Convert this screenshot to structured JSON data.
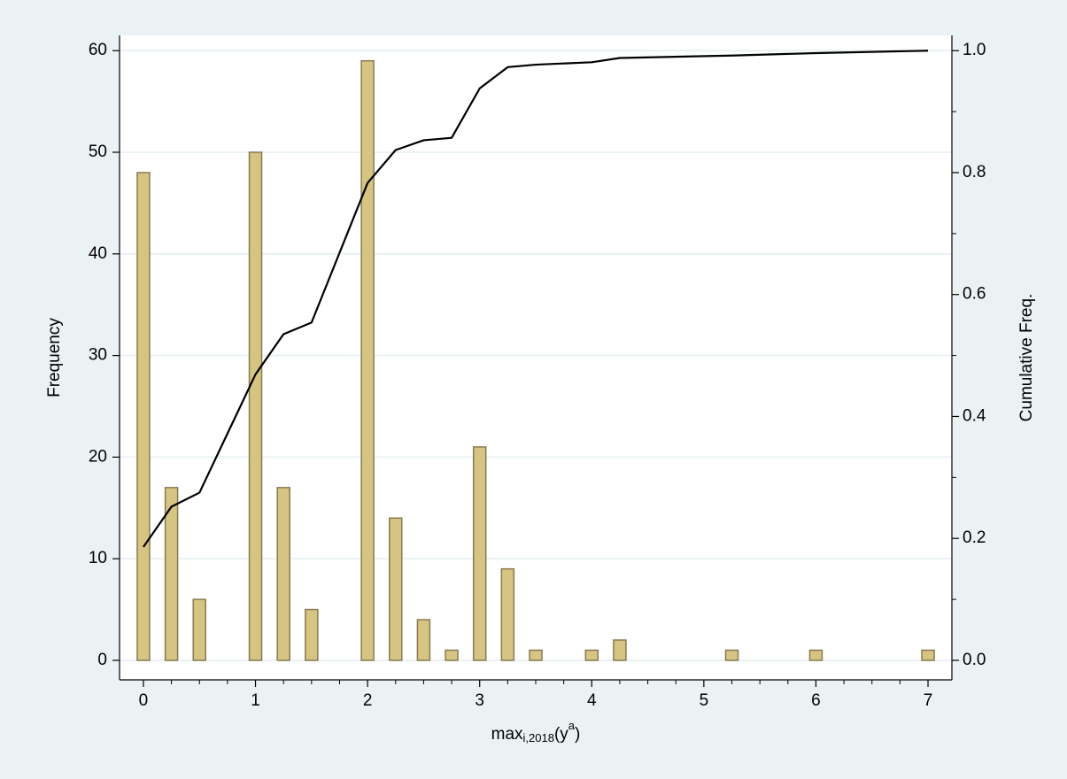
{
  "chart_data": {
    "type": "bar_line",
    "ylabel": "Frequency",
    "y2label": "Cumulative Freq.",
    "xlabel": {
      "base": "max",
      "sub": "i,2018",
      "mid": "(y",
      "sup": "a",
      "end": ")"
    },
    "x": [
      0,
      0.25,
      0.5,
      1,
      1.25,
      1.5,
      2,
      2.25,
      2.5,
      2.75,
      3,
      3.25,
      3.5,
      4,
      4.25,
      5.25,
      6,
      7
    ],
    "series": [
      {
        "type": "bar",
        "color": "#d6c482",
        "edgecolor": "#8a7a52",
        "values": [
          48,
          17,
          6,
          50,
          17,
          5,
          59,
          14,
          4,
          1,
          21,
          9,
          1,
          1,
          2,
          1,
          1,
          1
        ]
      },
      {
        "type": "line",
        "axis": "y2",
        "color": "#000000",
        "values": [
          0.186,
          0.252,
          0.275,
          0.469,
          0.535,
          0.554,
          0.783,
          0.837,
          0.853,
          0.857,
          0.938,
          0.973,
          0.977,
          0.981,
          0.988,
          0.992,
          0.996,
          1.0
        ]
      }
    ],
    "xlim": [
      -0.213,
      7.213
    ],
    "ylim": [
      -1.92,
      61.5
    ],
    "y2lim": [
      -0.032,
      1.025
    ],
    "xticks": [
      0,
      1,
      2,
      3,
      4,
      5,
      6,
      7
    ],
    "xminorticks": [
      0.25,
      0.5,
      0.75,
      1.25,
      1.5,
      1.75,
      2.25,
      2.5,
      2.75,
      3.25,
      3.5,
      3.75,
      4.25,
      4.5,
      4.75,
      5.25,
      5.5,
      5.75,
      6.25,
      6.5,
      6.75
    ],
    "yticks": [
      0,
      10,
      20,
      30,
      40,
      50,
      60
    ],
    "y2ticks": [
      {
        "value": 0,
        "label": "0.0"
      },
      0.2,
      0.4,
      0.6,
      0.8,
      {
        "value": 1,
        "label": "1.0"
      }
    ],
    "y2minorticks": [
      0.1,
      0.3,
      0.5,
      0.7,
      0.9
    ],
    "grid": true
  }
}
